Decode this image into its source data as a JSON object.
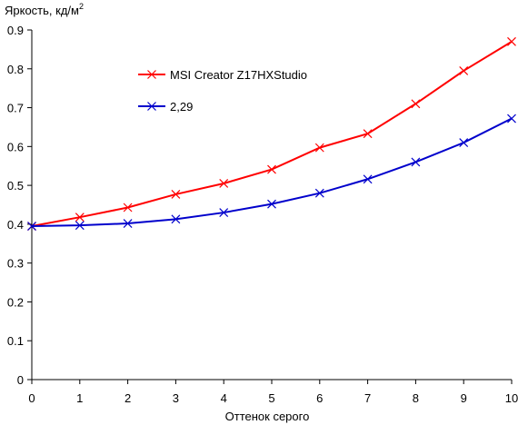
{
  "chart_data": {
    "type": "line",
    "ylabel": "Яркость, кд/м",
    "ylabel_sup": "2",
    "xlabel": "Оттенок серого",
    "xlim": [
      0,
      10
    ],
    "ylim": [
      0,
      0.9
    ],
    "x": [
      0,
      1,
      2,
      3,
      4,
      5,
      6,
      7,
      8,
      9,
      10
    ],
    "x_ticks": [
      "0",
      "1",
      "2",
      "3",
      "4",
      "5",
      "6",
      "7",
      "8",
      "9",
      "10"
    ],
    "y_ticks": [
      0,
      0.1,
      0.2,
      0.3,
      0.4,
      0.5,
      0.6,
      0.7,
      0.8,
      0.9
    ],
    "y_tick_labels": [
      "0",
      "0.1",
      "0.2",
      "0.3",
      "0.4",
      "0.5",
      "0.6",
      "0.7",
      "0.8",
      "0.9"
    ],
    "grid": false,
    "legend_position": "top-left inside plot",
    "series": [
      {
        "name": "MSI Creator Z17HXStudio",
        "color": "#ff0000",
        "marker": "x",
        "values": [
          0.395,
          0.418,
          0.443,
          0.477,
          0.505,
          0.541,
          0.597,
          0.633,
          0.71,
          0.795,
          0.87
        ]
      },
      {
        "name": "2,29",
        "color": "#0000cc",
        "marker": "x",
        "values": [
          0.395,
          0.397,
          0.402,
          0.413,
          0.43,
          0.452,
          0.48,
          0.516,
          0.56,
          0.61,
          0.672
        ]
      }
    ]
  }
}
